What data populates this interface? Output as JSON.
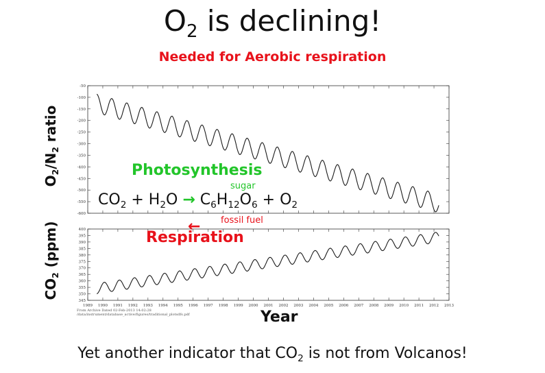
{
  "title": {
    "pre": "O",
    "sub": "2",
    "post": " is declining!"
  },
  "subtitle": "Needed for Aerobic respiration",
  "caption": {
    "pre": "Yet another indicator that CO",
    "sub": "2",
    "post": " is not from Volcanos!"
  },
  "overlay": {
    "photosynthesis": "Photosynthesis",
    "sugar": "sugar",
    "fossil_fuel": "fossil fuel",
    "respiration": "Respiration",
    "arrow_back": "←",
    "equation": [
      {
        "t": "CO"
      },
      {
        "s": "2"
      },
      {
        "t": " + H"
      },
      {
        "s": "2"
      },
      {
        "t": "O "
      },
      {
        "a": "→"
      },
      {
        "t": " C"
      },
      {
        "s": "6"
      },
      {
        "t": "H"
      },
      {
        "s": "12"
      },
      {
        "t": "O"
      },
      {
        "s": "6"
      },
      {
        "t": " + O"
      },
      {
        "s": "2"
      }
    ]
  },
  "credit": [
    "From Archive Dated 02-Feb-2013 14:02:28",
    "/data/instrument/database_active/figures/traditional_plotsdfs.pdf"
  ],
  "colors": {
    "red": "#e8121b",
    "green": "#22c52a",
    "trace": "#1a1a1a"
  },
  "chart_data": [
    {
      "type": "line",
      "panel": "top",
      "ylabel": {
        "pre": "O",
        "sub": "2",
        "mid": "/N",
        "sub2": "2",
        "post": " ratio"
      },
      "ylim": [
        -600,
        -50
      ],
      "yticks": [
        -50,
        -100,
        -150,
        -200,
        -250,
        -300,
        -350,
        -400,
        -450,
        -500,
        -550,
        -600
      ],
      "xlim": [
        1989,
        2013
      ],
      "series": [
        {
          "values_trend": {
            "start": -115,
            "slope_per_year": -19
          },
          "seasonal_amplitude": 40
        }
      ]
    },
    {
      "type": "line",
      "panel": "bottom",
      "ylabel": {
        "pre": "CO",
        "sub": "2",
        "post": " (ppm)"
      },
      "xlabel": "Year",
      "ylim": [
        345,
        400
      ],
      "yticks": [
        345,
        350,
        355,
        360,
        365,
        370,
        375,
        380,
        385,
        390,
        395,
        400
      ],
      "xlim": [
        1989,
        2013
      ],
      "xticks": [
        1989,
        1990,
        1991,
        1992,
        1993,
        1994,
        1995,
        1996,
        1997,
        1998,
        1999,
        2000,
        2001,
        2002,
        2003,
        2004,
        2005,
        2006,
        2007,
        2008,
        2009,
        2010,
        2011,
        2012,
        2013
      ],
      "series": [
        {
          "values_trend": {
            "start": 353,
            "slope_per_year": 1.75
          },
          "seasonal_amplitude": 4
        }
      ]
    }
  ]
}
